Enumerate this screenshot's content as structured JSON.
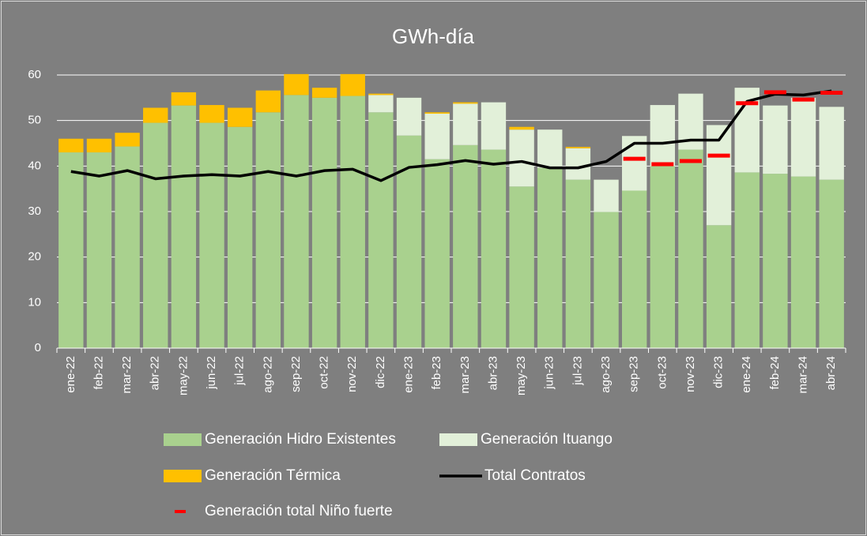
{
  "chart_data": {
    "type": "bar",
    "stacked": true,
    "title": "GWh-día",
    "categories": [
      "ene-22",
      "feb-22",
      "mar-22",
      "abr-22",
      "may-22",
      "jun-22",
      "jul-22",
      "ago-22",
      "sep-22",
      "oct-22",
      "nov-22",
      "dic-22",
      "ene-23",
      "feb-23",
      "mar-23",
      "abr-23",
      "may-23",
      "jun-23",
      "jul-23",
      "ago-23",
      "sep-23",
      "oct-23",
      "nov-23",
      "dic-23",
      "ene-24",
      "feb-24",
      "mar-24",
      "abr-24"
    ],
    "series": [
      {
        "name": "Generación Hidro Existentes",
        "type": "bar",
        "color": "#a9d18e",
        "values": [
          43,
          43,
          44.3,
          49.5,
          53.3,
          49.5,
          48.6,
          51.8,
          55.6,
          55,
          55.4,
          51.8,
          46.7,
          41.5,
          44.6,
          43.6,
          35.5,
          39.6,
          37,
          29.9,
          34.6,
          40,
          43.6,
          27,
          38.6,
          38.3,
          37.7,
          37
        ]
      },
      {
        "name": "Generación Ituango",
        "type": "bar",
        "color": "#e2f0d9",
        "values": [
          0,
          0,
          0,
          0,
          0,
          0,
          0,
          0,
          0,
          0,
          0,
          3.8,
          8.3,
          10,
          9.1,
          10.4,
          12.5,
          8.4,
          6.9,
          7.1,
          12,
          13.4,
          12.3,
          22,
          18.6,
          15,
          17.3,
          16
        ]
      },
      {
        "name": "Generación Térmica",
        "type": "bar",
        "color": "#ffc000",
        "values": [
          3,
          3,
          3,
          3.3,
          2.9,
          3.9,
          4.2,
          4.8,
          4.6,
          2.2,
          4.8,
          0.3,
          0,
          0.3,
          0.3,
          0,
          0.6,
          0,
          0.3,
          0,
          0,
          0,
          0,
          0,
          0,
          0,
          0,
          0
        ]
      },
      {
        "name": "Total Contratos",
        "type": "line",
        "color": "#000000",
        "values": [
          38.8,
          37.8,
          39,
          37.2,
          37.8,
          38.1,
          37.8,
          38.8,
          37.8,
          39,
          39.3,
          36.8,
          39.7,
          40.3,
          41.2,
          40.4,
          41,
          39.6,
          39.6,
          41,
          45,
          45,
          45.7,
          45.7,
          54.2,
          55.8,
          55.6,
          56.5
        ]
      },
      {
        "name": "Generación total Niño fuerte",
        "type": "marker",
        "color": "#ff0000",
        "values": [
          null,
          null,
          null,
          null,
          null,
          null,
          null,
          null,
          null,
          null,
          null,
          null,
          null,
          null,
          null,
          null,
          null,
          null,
          null,
          null,
          41.6,
          40.4,
          41.1,
          42.3,
          53.8,
          56.2,
          54.6,
          56.1
        ]
      }
    ],
    "ylim": [
      0,
      60
    ],
    "yticks": [
      0,
      10,
      20,
      30,
      40,
      50,
      60
    ],
    "grid": true
  }
}
